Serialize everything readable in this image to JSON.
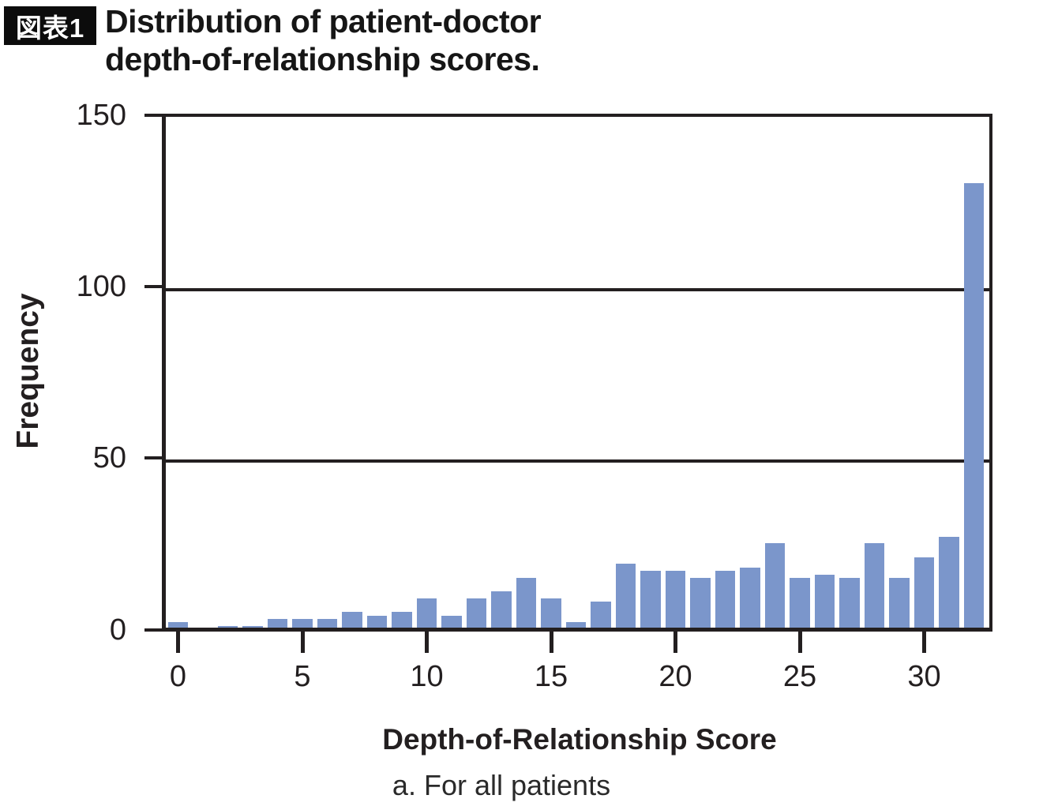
{
  "header": {
    "badge": "図表1",
    "title_line1": "Distribution of patient-doctor",
    "title_line2": "depth-of-relationship scores."
  },
  "chart_data": {
    "type": "bar",
    "title": "Distribution of patient-doctor depth-of-relationship scores.",
    "xlabel": "Depth-of-Relationship Score",
    "ylabel": "Frequency",
    "caption": "a. For all patients",
    "scores": [
      0,
      1,
      2,
      3,
      4,
      5,
      6,
      7,
      8,
      9,
      10,
      11,
      12,
      13,
      14,
      15,
      16,
      17,
      18,
      19,
      20,
      21,
      22,
      23,
      24,
      25,
      26,
      27,
      28,
      29,
      30,
      31,
      32
    ],
    "frequencies": [
      2,
      0,
      1,
      1,
      3,
      3,
      3,
      5,
      4,
      5,
      9,
      4,
      9,
      11,
      15,
      9,
      2,
      8,
      19,
      17,
      17,
      15,
      17,
      18,
      25,
      15,
      16,
      15,
      25,
      15,
      21,
      27,
      130
    ],
    "xticks": [
      0,
      5,
      10,
      15,
      20,
      25,
      30
    ],
    "yticks": [
      0,
      50,
      100,
      150
    ],
    "ylim": [
      0,
      150
    ],
    "grid": true,
    "legend": false,
    "bar_color": "#7b96cb",
    "axis_color": "#231f20"
  }
}
